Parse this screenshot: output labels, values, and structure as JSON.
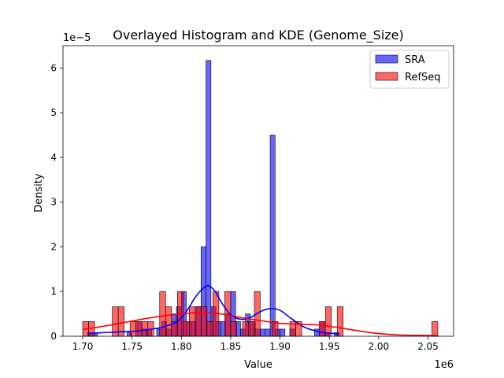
{
  "chart_data": {
    "type": "bar",
    "title": "Overlayed Histogram and KDE (Genome_Size)",
    "xlabel": "Value",
    "ylabel": "Density",
    "x_offset_label": "1e6",
    "y_offset_label": "1e−5",
    "xlim": [
      1.68,
      2.076
    ],
    "ylim": [
      0,
      6.5
    ],
    "x_ticks": [
      1.7,
      1.75,
      1.8,
      1.85,
      1.9,
      1.95,
      2.0,
      2.05
    ],
    "x_tick_labels": [
      "1.70",
      "1.75",
      "1.80",
      "1.85",
      "1.90",
      "1.95",
      "2.00",
      "2.05"
    ],
    "y_ticks": [
      0,
      1,
      2,
      3,
      4,
      5,
      6
    ],
    "y_tick_labels": [
      "0",
      "1",
      "2",
      "3",
      "4",
      "5",
      "6"
    ],
    "legend_position": "top-right",
    "series": [
      {
        "name": "SRA",
        "color": "#0000ff",
        "bin_width": 0.005,
        "bars": [
          {
            "x": 1.7075,
            "y": 0.08
          },
          {
            "x": 1.7125,
            "y": 0.08
          },
          {
            "x": 1.7475,
            "y": 0.08
          },
          {
            "x": 1.7575,
            "y": 0.33
          },
          {
            "x": 1.7625,
            "y": 0.16
          },
          {
            "x": 1.7675,
            "y": 0.16
          },
          {
            "x": 1.7775,
            "y": 0.16
          },
          {
            "x": 1.7825,
            "y": 0.33
          },
          {
            "x": 1.7875,
            "y": 0.16
          },
          {
            "x": 1.7925,
            "y": 0.5
          },
          {
            "x": 1.7975,
            "y": 0.66
          },
          {
            "x": 1.8025,
            "y": 1.0
          },
          {
            "x": 1.8075,
            "y": 0.33
          },
          {
            "x": 1.8125,
            "y": 0.33
          },
          {
            "x": 1.8175,
            "y": 0.66
          },
          {
            "x": 1.8225,
            "y": 2.0
          },
          {
            "x": 1.8275,
            "y": 6.17
          },
          {
            "x": 1.8325,
            "y": 0.66
          },
          {
            "x": 1.8375,
            "y": 0.33
          },
          {
            "x": 1.8425,
            "y": 0.33
          },
          {
            "x": 1.8475,
            "y": 0.5
          },
          {
            "x": 1.8525,
            "y": 1.0
          },
          {
            "x": 1.8575,
            "y": 0.33
          },
          {
            "x": 1.8625,
            "y": 0.16
          },
          {
            "x": 1.8675,
            "y": 0.5
          },
          {
            "x": 1.8725,
            "y": 0.33
          },
          {
            "x": 1.8775,
            "y": 0.16
          },
          {
            "x": 1.8825,
            "y": 0.16
          },
          {
            "x": 1.8875,
            "y": 0.16
          },
          {
            "x": 1.8925,
            "y": 4.5
          },
          {
            "x": 1.8975,
            "y": 0.16
          },
          {
            "x": 1.9025,
            "y": 0.16
          },
          {
            "x": 1.9125,
            "y": 0.16
          },
          {
            "x": 1.9375,
            "y": 0.16
          },
          {
            "x": 1.9425,
            "y": 0.33
          },
          {
            "x": 1.9475,
            "y": 0.08
          },
          {
            "x": 1.9575,
            "y": 0.08
          }
        ],
        "kde": {
          "x": [
            1.705,
            1.72,
            1.74,
            1.76,
            1.78,
            1.795,
            1.805,
            1.815,
            1.825,
            1.83,
            1.835,
            1.84,
            1.85,
            1.86,
            1.87,
            1.88,
            1.89,
            1.9,
            1.91,
            1.925,
            1.94,
            1.95,
            1.96
          ],
          "y": [
            0.06,
            0.08,
            0.1,
            0.13,
            0.2,
            0.32,
            0.55,
            0.9,
            1.12,
            1.1,
            0.98,
            0.78,
            0.48,
            0.38,
            0.42,
            0.55,
            0.62,
            0.58,
            0.42,
            0.2,
            0.1,
            0.07,
            0.05
          ]
        }
      },
      {
        "name": "RefSeq",
        "color": "#ff0000",
        "bin_width": 0.006,
        "bars": [
          {
            "x": 1.703,
            "y": 0.33
          },
          {
            "x": 1.709,
            "y": 0.33
          },
          {
            "x": 1.733,
            "y": 0.66
          },
          {
            "x": 1.739,
            "y": 0.66
          },
          {
            "x": 1.751,
            "y": 0.33
          },
          {
            "x": 1.757,
            "y": 0.33
          },
          {
            "x": 1.763,
            "y": 0.33
          },
          {
            "x": 1.769,
            "y": 0.33
          },
          {
            "x": 1.781,
            "y": 1.0
          },
          {
            "x": 1.787,
            "y": 0.66
          },
          {
            "x": 1.793,
            "y": 0.33
          },
          {
            "x": 1.799,
            "y": 1.0
          },
          {
            "x": 1.805,
            "y": 0.33
          },
          {
            "x": 1.811,
            "y": 0.66
          },
          {
            "x": 1.817,
            "y": 0.66
          },
          {
            "x": 1.823,
            "y": 0.66
          },
          {
            "x": 1.829,
            "y": 0.33
          },
          {
            "x": 1.835,
            "y": 1.0
          },
          {
            "x": 1.847,
            "y": 1.0
          },
          {
            "x": 1.853,
            "y": 0.33
          },
          {
            "x": 1.865,
            "y": 0.33
          },
          {
            "x": 1.871,
            "y": 0.33
          },
          {
            "x": 1.877,
            "y": 1.0
          },
          {
            "x": 1.895,
            "y": 0.33
          },
          {
            "x": 1.913,
            "y": 0.33
          },
          {
            "x": 1.919,
            "y": 0.33
          },
          {
            "x": 1.943,
            "y": 0.33
          },
          {
            "x": 1.949,
            "y": 0.66
          },
          {
            "x": 1.961,
            "y": 0.66
          },
          {
            "x": 2.057,
            "y": 0.33
          }
        ],
        "kde": {
          "x": [
            1.7,
            1.72,
            1.74,
            1.76,
            1.78,
            1.8,
            1.82,
            1.84,
            1.86,
            1.88,
            1.9,
            1.92,
            1.94,
            1.96,
            1.98,
            2.0,
            2.02,
            2.04,
            2.06
          ],
          "y": [
            0.15,
            0.22,
            0.3,
            0.38,
            0.45,
            0.5,
            0.53,
            0.5,
            0.42,
            0.35,
            0.29,
            0.27,
            0.25,
            0.19,
            0.12,
            0.06,
            0.03,
            0.02,
            0.02
          ]
        }
      }
    ]
  }
}
